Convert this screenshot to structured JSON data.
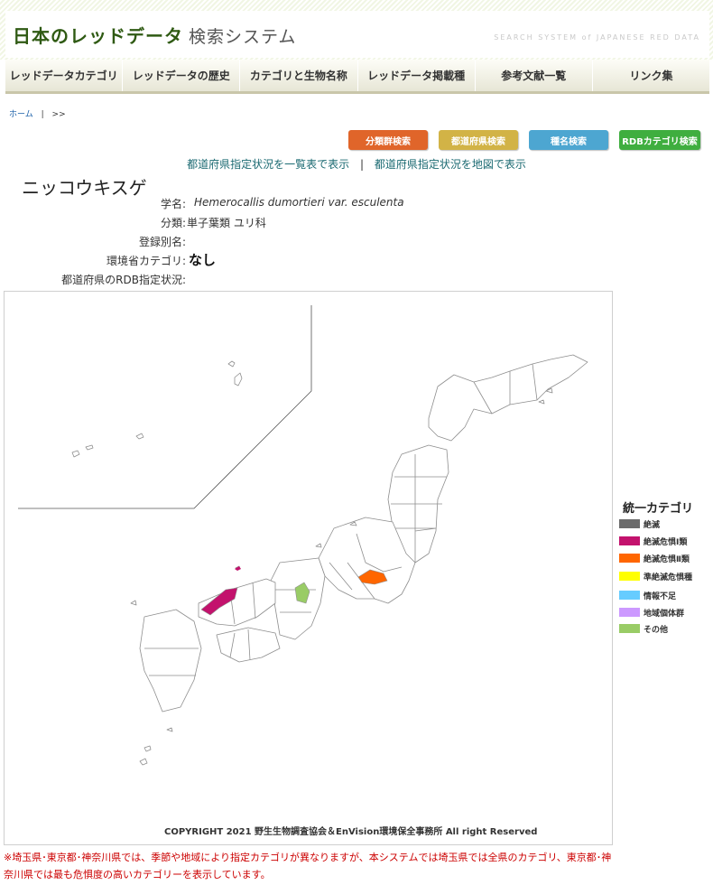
{
  "header": {
    "title": "日本のレッドデータ",
    "subtitle": "検索システム",
    "tagline": "SEARCH SYSTEM of JAPANESE RED DATA"
  },
  "nav": {
    "items": [
      {
        "label": "レッドデータカテゴリ"
      },
      {
        "label": "レッドデータの歴史"
      },
      {
        "label": "カテゴリと生物名称"
      },
      {
        "label": "レッドデータ掲載種"
      },
      {
        "label": "参考文献一覧"
      },
      {
        "label": "リンク集"
      }
    ]
  },
  "breadcrumb": {
    "home": "ホーム",
    "separator": "|",
    "next": ">>"
  },
  "search_buttons": [
    {
      "label": "分類群検索",
      "color": "#e0652a"
    },
    {
      "label": "都道府県検索",
      "color": "#d2b346"
    },
    {
      "label": "種名検索",
      "color": "#4da6d1"
    },
    {
      "label": "RDBカテゴリ検索",
      "color": "#3fae3f"
    }
  ],
  "links": {
    "list_view": "都道府県指定状況を一覧表で表示",
    "separator": "|",
    "map_view": "都道府県指定状況を地図で表示"
  },
  "species": {
    "name": "ニッコウキスゲ",
    "fields": [
      {
        "label": "学名:",
        "value": "Hemerocallis dumortieri var. esculenta"
      },
      {
        "label": "分類:",
        "value": "単子葉類 ユリ科"
      },
      {
        "label": "登録別名:",
        "value": ""
      },
      {
        "label": "環境省カテゴリ:",
        "value": "なし"
      },
      {
        "label": "都道府県のRDB指定状況:",
        "value": ""
      }
    ]
  },
  "map": {
    "copyright": "COPYRIGHT 2021 野生生物調査協会＆EnVision環境保全事務所 All right Reserved",
    "highlighted_prefectures": [
      {
        "region": "shimane",
        "category": "絶滅危惧Ⅰ類"
      },
      {
        "region": "tochigi-gunma",
        "category": "絶滅危惧Ⅱ類"
      },
      {
        "region": "shiga",
        "category": "その他"
      }
    ]
  },
  "legend": {
    "title": "統一カテゴリ",
    "items": [
      {
        "label": "絶滅",
        "color": "#6b6b6b"
      },
      {
        "label": "絶滅危惧Ⅰ類",
        "color": "#c3126d"
      },
      {
        "label": "絶滅危惧Ⅱ類",
        "color": "#ff6600"
      },
      {
        "label": "準絶滅危惧種",
        "color": "#ffff00"
      },
      {
        "label": "情報不足",
        "color": "#66ccff"
      },
      {
        "label": "地域個体群",
        "color": "#cc99ff"
      },
      {
        "label": "その他",
        "color": "#99cc66"
      }
    ]
  },
  "note": "※埼玉県･東京都･神奈川県では、季節や地域により指定カテゴリが異なりますが、本システムでは埼玉県では全県のカテゴリ、東京都･神奈川県では最も危惧度の高いカテゴリーを表示しています。"
}
